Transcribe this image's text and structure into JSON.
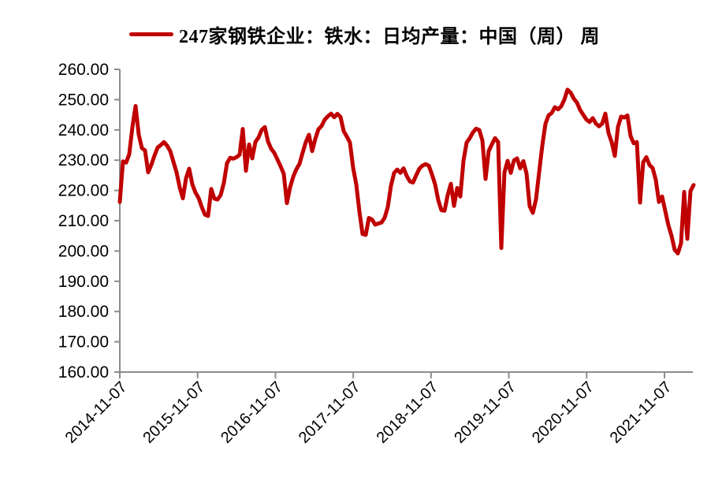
{
  "legend": {
    "label": "247家钢铁企业：铁水：日均产量：中国（周） 周",
    "marker_color": "#C00000"
  },
  "colors": {
    "series": "#C00000",
    "axis": "#8C8C8C",
    "text": "#000000",
    "background": "#FFFFFF"
  },
  "chart_data": {
    "type": "line",
    "title": "",
    "xlabel": "",
    "ylabel": "",
    "grid": "none",
    "legend_position": "top-center",
    "ylim": [
      160,
      260
    ],
    "y_ticks": [
      260,
      250,
      240,
      230,
      220,
      210,
      200,
      190,
      180,
      170,
      160
    ],
    "y_tick_decimals": 2,
    "x_tick_labels": [
      "2014-11-07",
      "2015-11-07",
      "2016-11-07",
      "2017-11-07",
      "2018-11-07",
      "2019-11-07",
      "2020-11-07",
      "2021-11-07"
    ],
    "x_unit": "weekly samples, uniform spacing from 2014-11-07 to early 2022",
    "series": [
      {
        "name": "247家钢铁企业：铁水：日均产量：中国（周） 周",
        "color": "#C00000",
        "values": [
          216.2,
          229.6,
          229.2,
          232.0,
          241.0,
          247.9,
          238.5,
          234.0,
          233.2,
          226.0,
          228.5,
          231.5,
          234.2,
          235.0,
          236.0,
          234.8,
          233.0,
          229.5,
          226.0,
          221.0,
          217.4,
          224.0,
          227.2,
          222.0,
          219.3,
          217.5,
          214.5,
          212.0,
          211.6,
          220.5,
          217.3,
          217.0,
          218.5,
          222.5,
          229.0,
          230.8,
          230.5,
          231.0,
          231.8,
          240.3,
          226.5,
          235.2,
          230.6,
          236.0,
          237.5,
          240.0,
          240.9,
          236.2,
          233.8,
          232.4,
          230.2,
          228.0,
          225.5,
          215.8,
          221.0,
          224.5,
          227.0,
          228.8,
          232.5,
          236.0,
          238.4,
          233.0,
          237.0,
          240.2,
          241.3,
          243.4,
          244.5,
          245.4,
          244.2,
          245.3,
          244.3,
          239.6,
          237.8,
          235.8,
          227.5,
          222.0,
          213.0,
          205.6,
          205.3,
          210.9,
          210.4,
          208.7,
          209.1,
          209.4,
          211.0,
          214.5,
          221.5,
          225.8,
          226.9,
          225.8,
          227.3,
          224.8,
          223.0,
          222.6,
          225.0,
          227.2,
          228.2,
          228.7,
          228.2,
          225.3,
          222.0,
          216.8,
          213.5,
          213.3,
          218.5,
          222.2,
          214.9,
          220.8,
          218.0,
          229.8,
          235.8,
          237.3,
          239.2,
          240.4,
          240.0,
          236.5,
          223.8,
          233.0,
          235.2,
          237.3,
          236.0,
          201.0,
          226.0,
          229.8,
          225.8,
          229.9,
          230.6,
          227.3,
          229.7,
          225.6,
          214.8,
          212.6,
          217.0,
          226.0,
          234.8,
          242.0,
          244.8,
          245.6,
          247.5,
          246.8,
          247.8,
          250.0,
          253.3,
          252.3,
          250.3,
          249.0,
          246.6,
          245.0,
          243.4,
          242.6,
          243.9,
          242.1,
          241.2,
          242.1,
          245.4,
          239.0,
          236.0,
          231.4,
          241.0,
          244.4,
          244.1,
          244.8,
          238.0,
          235.6,
          236.0,
          216.0,
          229.3,
          231.0,
          228.4,
          227.4,
          223.5,
          216.2,
          218.0,
          213.2,
          208.5,
          205.0,
          200.4,
          199.2,
          202.5,
          219.5,
          204.0,
          219.8,
          221.8
        ]
      }
    ]
  }
}
